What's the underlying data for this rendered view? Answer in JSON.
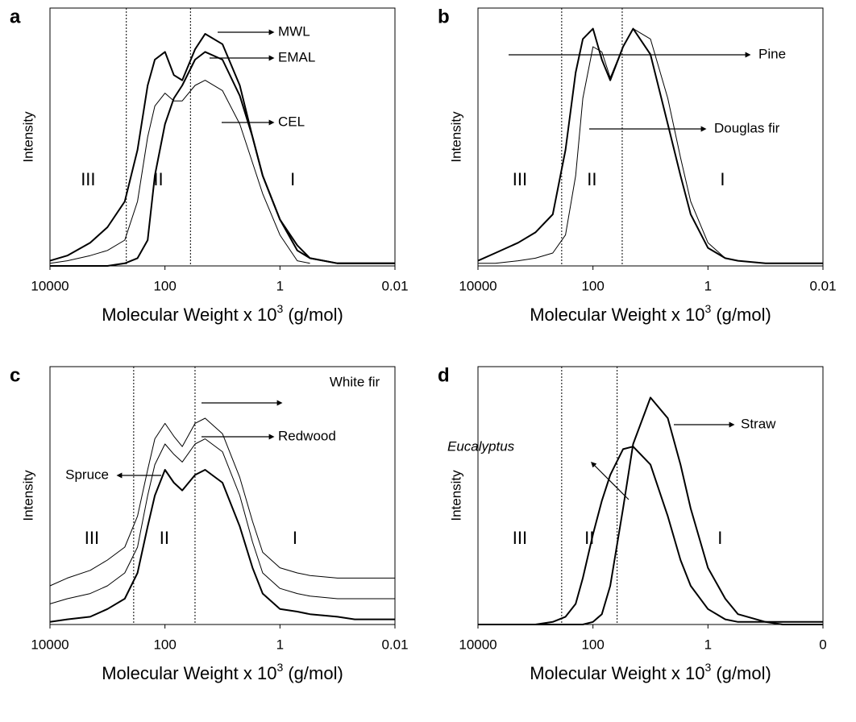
{
  "chart_data": [
    {
      "type": "line",
      "label": "a",
      "ylabel": "Intensity",
      "xlabel": [
        "Molecular Weight x 10",
        "3",
        " (g/mol)"
      ],
      "log_x": true,
      "xlim": [
        10000,
        0.01
      ],
      "ylim": [
        0,
        1
      ],
      "xticks": [
        10000,
        100,
        1,
        0.01
      ],
      "dividers": [
        470,
        36
      ],
      "regions": [
        "III",
        "II",
        "I"
      ],
      "x": [
        10000,
        5000,
        2000,
        1000,
        500,
        300,
        200,
        150,
        100,
        70,
        50,
        30,
        20,
        10,
        5,
        3,
        2,
        1,
        0.5,
        0.3,
        0.1,
        0.05,
        0.01
      ],
      "series": [
        {
          "name": "MWL",
          "color": "#000000",
          "line_width": 2,
          "values": [
            0.02,
            0.04,
            0.09,
            0.15,
            0.25,
            0.45,
            0.7,
            0.8,
            0.83,
            0.74,
            0.72,
            0.84,
            0.9,
            0.86,
            0.7,
            0.5,
            0.35,
            0.18,
            0.08,
            0.03,
            0.01,
            0.01,
            0.01
          ]
        },
        {
          "name": "EMAL",
          "color": "#000000",
          "line_width": 2,
          "values": [
            0,
            0,
            0,
            0,
            0.01,
            0.03,
            0.1,
            0.35,
            0.55,
            0.65,
            0.7,
            0.8,
            0.83,
            0.8,
            0.66,
            0.5,
            0.35,
            0.18,
            0.06,
            0.03,
            0.01,
            0.01,
            0.01
          ]
        },
        {
          "name": "CEL",
          "color": "#000000",
          "line_width": 1,
          "values": [
            0.01,
            0.02,
            0.04,
            0.06,
            0.1,
            0.25,
            0.5,
            0.62,
            0.67,
            0.64,
            0.64,
            0.7,
            0.72,
            0.68,
            0.55,
            0.4,
            0.28,
            0.12,
            0.02,
            0.01,
            null,
            null,
            null
          ]
        }
      ]
    },
    {
      "type": "line",
      "label": "b",
      "ylabel": "Intensity",
      "xlabel": [
        "Molecular Weight x 10",
        "3",
        " (g/mol)"
      ],
      "log_x": true,
      "xlim": [
        10000,
        0.01
      ],
      "ylim": [
        0,
        1
      ],
      "xticks": [
        10000,
        100,
        1,
        0.01
      ],
      "dividers": [
        350,
        31
      ],
      "regions": [
        "III",
        "II",
        "I"
      ],
      "x": [
        10000,
        5000,
        2000,
        1000,
        500,
        300,
        200,
        150,
        100,
        70,
        50,
        30,
        20,
        10,
        5,
        3,
        2,
        1,
        0.5,
        0.3,
        0.1,
        0.05,
        0.01
      ],
      "series": [
        {
          "name": "Pine",
          "color": "#000000",
          "line_width": 2,
          "values": [
            0.02,
            0.05,
            0.09,
            0.13,
            0.2,
            0.45,
            0.75,
            0.88,
            0.92,
            0.8,
            0.72,
            0.85,
            0.92,
            0.82,
            0.55,
            0.35,
            0.2,
            0.07,
            0.03,
            0.02,
            0.01,
            0.01,
            0.01
          ]
        },
        {
          "name": "Douglas fir",
          "color": "#000000",
          "line_width": 1,
          "values": [
            0.01,
            0.01,
            0.02,
            0.03,
            0.05,
            0.12,
            0.35,
            0.65,
            0.85,
            0.83,
            0.73,
            0.85,
            0.92,
            0.88,
            0.65,
            0.42,
            0.25,
            0.09,
            0.03,
            0.02,
            0.01,
            0.01,
            0.01
          ]
        }
      ]
    },
    {
      "type": "line",
      "label": "c",
      "ylabel": "Intensity",
      "xlabel": [
        "Molecular Weight x 10",
        "3",
        " (g/mol)"
      ],
      "log_x": true,
      "xlim": [
        10000,
        0.01
      ],
      "ylim": [
        0,
        1
      ],
      "xticks": [
        10000,
        100,
        1,
        0.01
      ],
      "dividers": [
        350,
        30
      ],
      "regions": [
        "III",
        "II",
        "I"
      ],
      "x": [
        10000,
        5000,
        2000,
        1000,
        500,
        300,
        200,
        150,
        100,
        70,
        50,
        30,
        20,
        10,
        5,
        3,
        2,
        1,
        0.5,
        0.3,
        0.1,
        0.05,
        0.01
      ],
      "series": [
        {
          "name": "Spruce",
          "color": "#000000",
          "line_width": 2,
          "values": [
            0.01,
            0.02,
            0.03,
            0.06,
            0.1,
            0.2,
            0.38,
            0.5,
            0.6,
            0.55,
            0.52,
            0.58,
            0.6,
            0.55,
            0.38,
            0.22,
            0.12,
            0.06,
            0.05,
            0.04,
            0.03,
            0.02,
            0.02
          ]
        },
        {
          "name": "Redwood",
          "color": "#000000",
          "line_width": 1,
          "values": [
            0.08,
            0.1,
            0.12,
            0.15,
            0.2,
            0.3,
            0.5,
            0.62,
            0.7,
            0.66,
            0.63,
            0.7,
            0.72,
            0.67,
            0.5,
            0.32,
            0.2,
            0.14,
            0.12,
            0.11,
            0.1,
            0.1,
            0.1
          ]
        },
        {
          "name": "White fir",
          "color": "#000000",
          "line_width": 1,
          "values": [
            0.15,
            0.18,
            0.21,
            0.25,
            0.3,
            0.42,
            0.6,
            0.72,
            0.78,
            0.73,
            0.69,
            0.78,
            0.8,
            0.74,
            0.57,
            0.4,
            0.28,
            0.22,
            0.2,
            0.19,
            0.18,
            0.18,
            0.18
          ]
        }
      ]
    },
    {
      "type": "line",
      "label": "d",
      "ylabel": "Intensity",
      "xlabel": [
        "Molecular Weight x 10",
        "3",
        " (g/mol)"
      ],
      "log_x": true,
      "xlim": [
        10000,
        0.01
      ],
      "ylim": [
        0,
        1
      ],
      "xticks": [
        10000,
        100,
        1,
        {
          "value": 0.01,
          "label": "0"
        }
      ],
      "dividers": [
        350,
        38
      ],
      "regions": [
        "III",
        "II",
        "I"
      ],
      "x": [
        10000,
        5000,
        2000,
        1000,
        500,
        300,
        200,
        150,
        100,
        70,
        50,
        30,
        20,
        10,
        5,
        3,
        2,
        1,
        0.5,
        0.3,
        0.1,
        0.05,
        0.01
      ],
      "series": [
        {
          "name": "Eucalyptus",
          "color": "#000000",
          "line_width": 2,
          "values": [
            0,
            0,
            0,
            0,
            0.01,
            0.03,
            0.08,
            0.18,
            0.35,
            0.48,
            0.58,
            0.68,
            0.69,
            0.62,
            0.42,
            0.25,
            0.15,
            0.06,
            0.02,
            0.01,
            0.01,
            0.01,
            0.01
          ]
        },
        {
          "name": "Straw",
          "color": "#000000",
          "line_width": 2,
          "values": [
            0,
            0,
            0,
            0,
            0,
            0,
            0,
            0,
            0.01,
            0.04,
            0.15,
            0.45,
            0.7,
            0.88,
            0.8,
            0.62,
            0.45,
            0.22,
            0.1,
            0.04,
            0.01,
            0,
            0
          ]
        }
      ]
    }
  ]
}
